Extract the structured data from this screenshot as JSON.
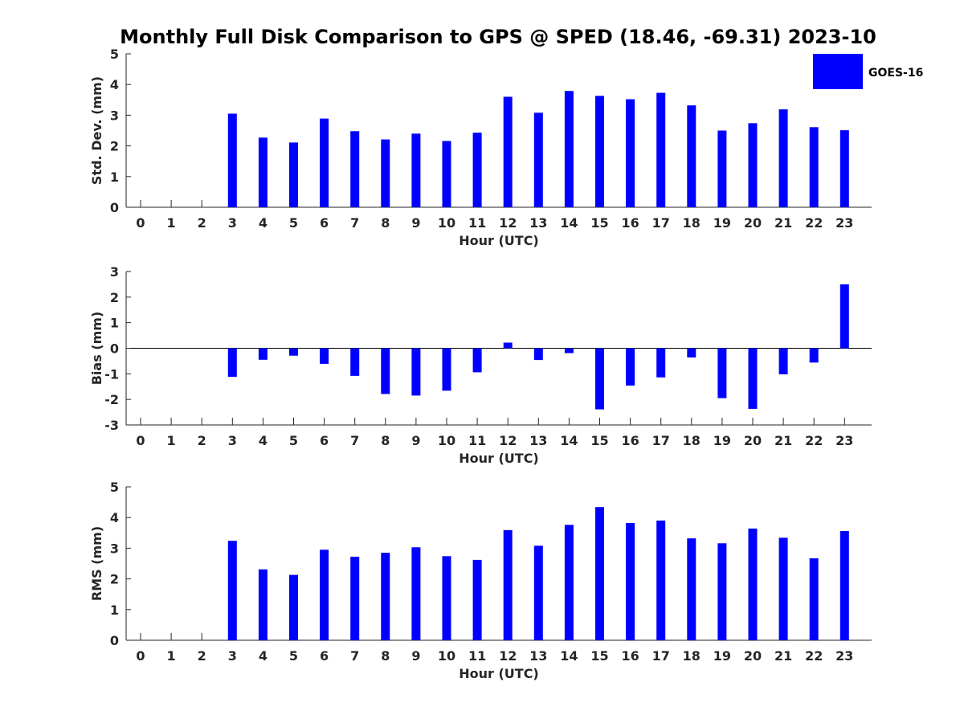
{
  "title": "Monthly Full Disk Comparison to GPS @ SPED (18.46, -69.31) 2023-10",
  "legend": {
    "label": "GOES-16",
    "color": "#0000ff",
    "placement": "top-right"
  },
  "chart_data": [
    {
      "type": "bar",
      "title": "",
      "xlabel": "Hour (UTC)",
      "ylabel": "Std. Dev. (mm)",
      "ylim": [
        0,
        5
      ],
      "yticks": [
        "0",
        "1",
        "2",
        "3",
        "4",
        "5"
      ],
      "categories": [
        "0",
        "1",
        "2",
        "3",
        "4",
        "5",
        "6",
        "7",
        "8",
        "9",
        "10",
        "11",
        "12",
        "13",
        "14",
        "15",
        "16",
        "17",
        "18",
        "19",
        "20",
        "21",
        "22",
        "23"
      ],
      "series": [
        {
          "name": "GOES-16",
          "color": "#0000ff",
          "values": [
            null,
            null,
            null,
            3.05,
            2.27,
            2.11,
            2.89,
            2.48,
            2.21,
            2.4,
            2.16,
            2.43,
            3.6,
            3.08,
            3.79,
            3.63,
            3.52,
            3.73,
            3.32,
            2.5,
            2.74,
            3.19,
            2.61,
            2.51
          ]
        }
      ]
    },
    {
      "type": "bar",
      "title": "",
      "xlabel": "Hour (UTC)",
      "ylabel": "Bias (mm)",
      "ylim": [
        -3,
        3
      ],
      "yticks": [
        "-3",
        "-2",
        "-1",
        "0",
        "1",
        "2",
        "3"
      ],
      "categories": [
        "0",
        "1",
        "2",
        "3",
        "4",
        "5",
        "6",
        "7",
        "8",
        "9",
        "10",
        "11",
        "12",
        "13",
        "14",
        "15",
        "16",
        "17",
        "18",
        "19",
        "20",
        "21",
        "22",
        "23"
      ],
      "series": [
        {
          "name": "GOES-16",
          "color": "#0000ff",
          "values": [
            null,
            null,
            null,
            -1.12,
            -0.45,
            -0.29,
            -0.61,
            -1.08,
            -1.79,
            -1.85,
            -1.66,
            -0.94,
            0.22,
            -0.46,
            -0.19,
            -2.39,
            -1.46,
            -1.14,
            -0.36,
            -1.95,
            -2.37,
            -1.02,
            -0.56,
            2.5
          ]
        }
      ]
    },
    {
      "type": "bar",
      "title": "",
      "xlabel": "Hour (UTC)",
      "ylabel": "RMS (mm)",
      "ylim": [
        0,
        5
      ],
      "yticks": [
        "0",
        "1",
        "2",
        "3",
        "4",
        "5"
      ],
      "categories": [
        "0",
        "1",
        "2",
        "3",
        "4",
        "5",
        "6",
        "7",
        "8",
        "9",
        "10",
        "11",
        "12",
        "13",
        "14",
        "15",
        "16",
        "17",
        "18",
        "19",
        "20",
        "21",
        "22",
        "23"
      ],
      "series": [
        {
          "name": "GOES-16",
          "color": "#0000ff",
          "values": [
            null,
            null,
            null,
            3.24,
            2.31,
            2.13,
            2.95,
            2.72,
            2.85,
            3.03,
            2.74,
            2.62,
            3.59,
            3.08,
            3.76,
            4.34,
            3.82,
            3.9,
            3.32,
            3.16,
            3.64,
            3.34,
            2.67,
            3.56
          ]
        }
      ]
    }
  ]
}
